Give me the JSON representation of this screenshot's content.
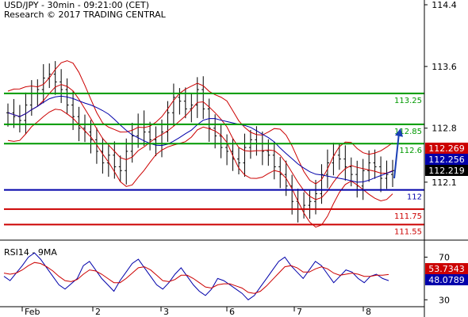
{
  "header": {
    "line1": "USD/JPY - 30min - 09:21:00 (CET)",
    "line2": "Research © 2017 TRADING CENTRAL"
  },
  "chart_data": [
    {
      "type": "candlestick",
      "symbol": "USD/JPY",
      "timeframe": "30min",
      "ylim": [
        111.4,
        114.4
      ],
      "y_ticks": [
        114.4,
        113.6,
        112.8,
        112.1
      ],
      "x_ticks": [
        "Feb",
        "2",
        "3",
        "6",
        "7",
        "8"
      ],
      "grid": false,
      "levels": [
        {
          "name": "",
          "value": 113.25,
          "label": "113.25",
          "color": "#009900"
        },
        {
          "name": "",
          "value": 112.85,
          "label": "112.85",
          "color": "#009900"
        },
        {
          "name": "",
          "value": 112.6,
          "label": "112.6",
          "color": "#009900"
        },
        {
          "name": "",
          "value": 112.0,
          "label": "112",
          "color": "#0000aa"
        },
        {
          "name": "",
          "value": 111.75,
          "label": "111.75",
          "color": "#cc0000"
        },
        {
          "name": "",
          "value": 111.55,
          "label": "111.55",
          "color": "#cc0000"
        }
      ],
      "price_tags": [
        {
          "value": 112.269,
          "label": "112.269",
          "color": "#cc0000"
        },
        {
          "value": 112.256,
          "label": "112.256",
          "color": "#0000aa"
        },
        {
          "value": 112.219,
          "label": "112.219",
          "color": "#000000"
        }
      ],
      "projection": {
        "direction": "up",
        "from": 112.15,
        "to": 112.8
      },
      "close_path": [
        113.0,
        112.95,
        112.9,
        113.1,
        113.25,
        113.3,
        113.45,
        113.5,
        113.4,
        113.3,
        113.1,
        112.95,
        112.8,
        112.75,
        112.65,
        112.5,
        112.35,
        112.45,
        112.3,
        112.25,
        112.5,
        112.7,
        112.85,
        112.75,
        112.65,
        112.6,
        112.75,
        113.0,
        113.2,
        113.15,
        113.05,
        113.1,
        113.3,
        113.05,
        112.8,
        112.7,
        112.55,
        112.5,
        112.4,
        112.35,
        112.55,
        112.65,
        112.6,
        112.5,
        112.45,
        112.3,
        112.2,
        112.05,
        111.85,
        111.75,
        111.8,
        111.85,
        111.95,
        112.2,
        112.35,
        112.45,
        112.4,
        112.3,
        112.2,
        112.05,
        112.25,
        112.35,
        112.3,
        112.15,
        112.2,
        112.25
      ]
    },
    {
      "type": "line",
      "title": "RSI14 - 9MA",
      "ylim": [
        25,
        80
      ],
      "y_ticks": [
        70,
        30
      ],
      "series": [
        {
          "name": "",
          "color": "#0000aa",
          "tag": "48.0789",
          "last": 48.0789,
          "values": [
            52,
            48,
            55,
            62,
            70,
            74,
            68,
            60,
            52,
            44,
            40,
            45,
            50,
            62,
            66,
            58,
            50,
            44,
            38,
            48,
            56,
            64,
            68,
            60,
            52,
            44,
            40,
            46,
            54,
            60,
            52,
            44,
            38,
            34,
            40,
            50,
            48,
            44,
            40,
            36,
            30,
            34,
            42,
            50,
            58,
            66,
            70,
            62,
            56,
            50,
            58,
            66,
            62,
            54,
            46,
            52,
            58,
            56,
            50,
            46,
            52,
            54,
            50,
            48
          ]
        },
        {
          "name": "",
          "color": "#cc0000",
          "tag": "53.7343",
          "last": 53.7343,
          "values": [
            55,
            54,
            55,
            58,
            62,
            65,
            64,
            61,
            57,
            52,
            48,
            47,
            49,
            54,
            58,
            57,
            54,
            50,
            46,
            46,
            50,
            55,
            60,
            61,
            58,
            53,
            48,
            47,
            49,
            53,
            53,
            50,
            46,
            42,
            41,
            44,
            45,
            45,
            43,
            41,
            37,
            36,
            38,
            43,
            49,
            55,
            61,
            62,
            60,
            56,
            56,
            59,
            61,
            59,
            55,
            53,
            54,
            55,
            54,
            52,
            52,
            53,
            53,
            53.7
          ]
        }
      ]
    }
  ]
}
